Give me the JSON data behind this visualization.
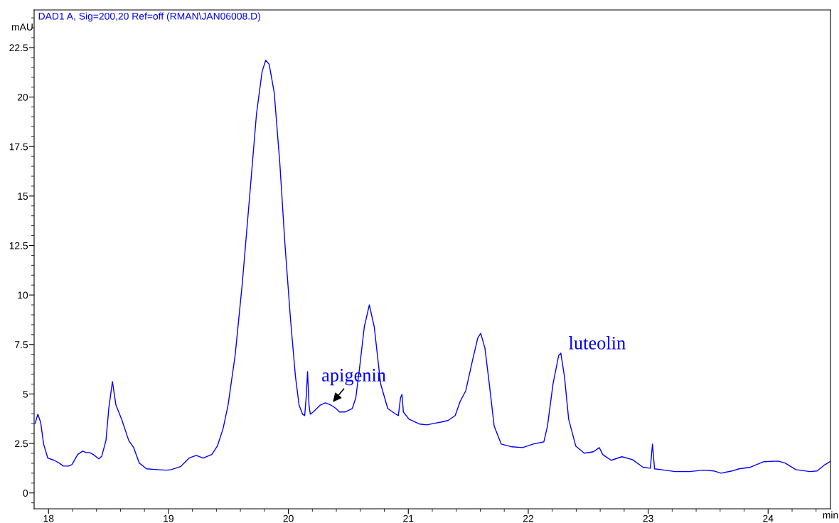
{
  "chart_data": {
    "type": "line",
    "title": "DAD1 A, Sig=200,20 Ref=off (RMAN\\JAN06008.D)",
    "xlabel": "min",
    "ylabel": "mAU",
    "xlim": [
      17.88,
      24.52
    ],
    "ylim": [
      -0.8,
      24.4
    ],
    "xticks": [
      18,
      19,
      20,
      21,
      22,
      23,
      24
    ],
    "yticks": [
      0,
      2.5,
      5,
      7.5,
      10,
      12.5,
      15,
      17.5,
      20,
      22.5
    ],
    "grid": false,
    "legend": false,
    "annotations": [
      {
        "text": "apigenin",
        "x": 20.35,
        "y": 4.44
      },
      {
        "text": "luteolin",
        "x": 22.27,
        "y": 7.06
      }
    ],
    "series": [
      {
        "color": "#0000ff",
        "x": [
          17.888,
          17.911,
          17.935,
          17.959,
          17.994,
          18.047,
          18.089,
          18.124,
          18.166,
          18.195,
          18.243,
          18.284,
          18.314,
          18.343,
          18.373,
          18.42,
          18.444,
          18.479,
          18.503,
          18.533,
          18.562,
          18.609,
          18.669,
          18.71,
          18.757,
          18.817,
          18.905,
          18.982,
          19.024,
          19.101,
          19.172,
          19.231,
          19.29,
          19.361,
          19.408,
          19.456,
          19.497,
          19.556,
          19.615,
          19.675,
          19.734,
          19.781,
          19.811,
          19.84,
          19.882,
          19.929,
          19.97,
          20.018,
          20.059,
          20.089,
          20.118,
          20.136,
          20.148,
          20.16,
          20.172,
          20.183,
          20.207,
          20.266,
          20.308,
          20.355,
          20.396,
          20.426,
          20.473,
          20.533,
          20.562,
          20.592,
          20.633,
          20.675,
          20.716,
          20.769,
          20.828,
          20.888,
          20.917,
          20.935,
          20.947,
          20.959,
          21.006,
          21.095,
          21.154,
          21.213,
          21.272,
          21.331,
          21.391,
          21.432,
          21.479,
          21.538,
          21.58,
          21.604,
          21.639,
          21.675,
          21.716,
          21.775,
          21.864,
          21.953,
          22.041,
          22.13,
          22.16,
          22.207,
          22.254,
          22.272,
          22.302,
          22.337,
          22.396,
          22.467,
          22.544,
          22.592,
          22.621,
          22.663,
          22.692,
          22.781,
          22.87,
          22.959,
          23.018,
          23.036,
          23.053,
          23.136,
          23.225,
          23.343,
          23.462,
          23.55,
          23.609,
          23.698,
          23.757,
          23.846,
          23.964,
          24.083,
          24.142,
          24.231,
          24.349,
          24.408,
          24.467,
          24.515
        ],
        "values": [
          3.51,
          3.98,
          3.55,
          2.47,
          1.76,
          1.65,
          1.51,
          1.36,
          1.36,
          1.43,
          1.94,
          2.11,
          2.04,
          2.04,
          1.94,
          1.72,
          1.86,
          2.65,
          4.3,
          5.63,
          4.44,
          3.73,
          2.65,
          2.29,
          1.51,
          1.22,
          1.18,
          1.15,
          1.18,
          1.33,
          1.76,
          1.9,
          1.76,
          1.94,
          2.37,
          3.26,
          4.44,
          6.95,
          10.54,
          14.84,
          19.14,
          21.29,
          21.86,
          21.65,
          20.22,
          16.63,
          12.69,
          8.75,
          5.88,
          4.44,
          3.98,
          3.91,
          4.8,
          6.13,
          4.44,
          3.98,
          4.09,
          4.44,
          4.55,
          4.44,
          4.27,
          4.09,
          4.09,
          4.27,
          4.8,
          6.24,
          8.39,
          9.5,
          8.39,
          5.52,
          4.27,
          4.01,
          3.91,
          4.8,
          4.98,
          4.09,
          3.73,
          3.48,
          3.44,
          3.51,
          3.58,
          3.66,
          3.91,
          4.62,
          5.16,
          6.77,
          7.85,
          8.06,
          7.31,
          5.52,
          3.37,
          2.47,
          2.33,
          2.29,
          2.47,
          2.58,
          3.37,
          5.52,
          6.95,
          7.06,
          5.88,
          3.73,
          2.37,
          2.01,
          2.08,
          2.29,
          1.94,
          1.76,
          1.65,
          1.83,
          1.68,
          1.29,
          1.25,
          2.47,
          1.22,
          1.15,
          1.08,
          1.08,
          1.15,
          1.11,
          1.0,
          1.11,
          1.22,
          1.29,
          1.58,
          1.61,
          1.51,
          1.18,
          1.08,
          1.11,
          1.4,
          1.58
        ]
      }
    ]
  }
}
